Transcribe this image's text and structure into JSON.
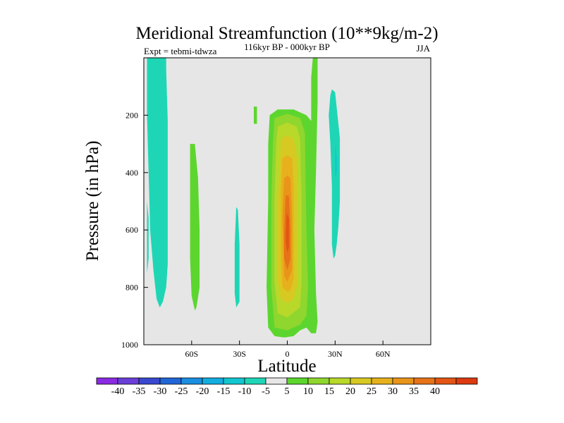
{
  "chart_data": {
    "type": "contour",
    "title": "Meridional Streamfunction (10**9kg/m-2)",
    "subtitle": "116kyr BP - 000kyr BP",
    "experiment": "Expt = tebmi-tdwza",
    "season": "JJA",
    "xlabel": "Latitude",
    "ylabel": "Pressure (in hPa)",
    "xlim": [
      -90,
      90
    ],
    "ylim": [
      1000,
      0
    ],
    "x_ticks": [
      {
        "value": -60,
        "label": "60S"
      },
      {
        "value": -30,
        "label": "30S"
      },
      {
        "value": 0,
        "label": "0"
      },
      {
        "value": 30,
        "label": "30N"
      },
      {
        "value": 60,
        "label": "60N"
      }
    ],
    "y_ticks": [
      {
        "value": 200,
        "label": "200"
      },
      {
        "value": 400,
        "label": "400"
      },
      {
        "value": 600,
        "label": "600"
      },
      {
        "value": 800,
        "label": "800"
      },
      {
        "value": 1000,
        "label": "1000"
      }
    ],
    "levels": [
      -45,
      -40,
      -35,
      -30,
      -25,
      -20,
      -15,
      -10,
      -5,
      5,
      10,
      15,
      20,
      25,
      30,
      35,
      40,
      45
    ],
    "level_labels": [
      "-40",
      "-35",
      "-30",
      "-25",
      "-20",
      "-15",
      "-10",
      "-5",
      "5",
      "10",
      "15",
      "20",
      "25",
      "30",
      "35",
      "40"
    ],
    "colors": [
      "#8a2be2",
      "#6a3fd8",
      "#3a48d0",
      "#2166d8",
      "#1a8ee0",
      "#12aee0",
      "#12c6cf",
      "#1ed6b5",
      "#e6e6e6",
      "#5cd62e",
      "#8fd62e",
      "#b8d82a",
      "#d8c822",
      "#e6b11c",
      "#e8951a",
      "#e67318",
      "#e35514",
      "#dc3a10"
    ],
    "background_color": "#e6e6e6",
    "regions": [
      {
        "name": "south-polar-negative",
        "value": -7,
        "outline": [
          [
            -88,
            0
          ],
          [
            -76,
            0
          ],
          [
            -76,
            40
          ],
          [
            -75,
            220
          ],
          [
            -75,
            720
          ],
          [
            -76,
            800
          ],
          [
            -78,
            850
          ],
          [
            -80,
            870
          ],
          [
            -82,
            840
          ],
          [
            -84,
            740
          ],
          [
            -86,
            600
          ],
          [
            -87,
            400
          ],
          [
            -88,
            200
          ]
        ]
      },
      {
        "name": "south-polar-negative-tail",
        "value": -7,
        "outline": [
          [
            -88,
            500
          ],
          [
            -87,
            560
          ],
          [
            -87,
            700
          ],
          [
            -88,
            750
          ]
        ]
      },
      {
        "name": "southern-midlat-positive",
        "value": 7,
        "outline": [
          [
            -61,
            300
          ],
          [
            -58,
            300
          ],
          [
            -56,
            420
          ],
          [
            -55,
            600
          ],
          [
            -55,
            800
          ],
          [
            -57,
            870
          ],
          [
            -58,
            880
          ],
          [
            -60,
            830
          ],
          [
            -61,
            700
          ],
          [
            -61,
            500
          ]
        ]
      },
      {
        "name": "southern-subtropic-negative",
        "value": -7,
        "outline": [
          [
            -32,
            520
          ],
          [
            -31,
            530
          ],
          [
            -30,
            650
          ],
          [
            -30,
            850
          ],
          [
            -32,
            870
          ],
          [
            -33,
            820
          ],
          [
            -33,
            650
          ]
        ]
      },
      {
        "name": "small-positive-patch",
        "value": 7,
        "outline": [
          [
            -21,
            170
          ],
          [
            -19,
            170
          ],
          [
            -19,
            230
          ],
          [
            -21,
            230
          ]
        ]
      },
      {
        "name": "north-tropic-negative",
        "value": -7,
        "outline": [
          [
            27,
            130
          ],
          [
            28,
            110
          ],
          [
            30,
            120
          ],
          [
            33,
            280
          ],
          [
            33,
            500
          ],
          [
            32,
            590
          ],
          [
            31,
            650
          ],
          [
            30,
            690
          ],
          [
            29,
            700
          ],
          [
            28,
            650
          ],
          [
            28,
            450
          ],
          [
            27,
            300
          ],
          [
            26,
            200
          ]
        ]
      },
      {
        "name": "north-tropic-negative-inner",
        "value": -12,
        "outline": [
          [
            30,
            300
          ],
          [
            31,
            350
          ],
          [
            31,
            400
          ],
          [
            30,
            420
          ],
          [
            30,
            350
          ]
        ]
      },
      {
        "name": "hadley-l1",
        "value": 7,
        "outline": [
          [
            -11,
            200
          ],
          [
            -6,
            180
          ],
          [
            4,
            180
          ],
          [
            12,
            200
          ],
          [
            15,
            220
          ],
          [
            15,
            70
          ],
          [
            16,
            0
          ],
          [
            19,
            0
          ],
          [
            19,
            150
          ],
          [
            18,
            400
          ],
          [
            17,
            600
          ],
          [
            18,
            820
          ],
          [
            19,
            920
          ],
          [
            18,
            960
          ],
          [
            15,
            960
          ],
          [
            12,
            940
          ],
          [
            8,
            950
          ],
          [
            4,
            970
          ],
          [
            -2,
            975
          ],
          [
            -8,
            970
          ],
          [
            -12,
            940
          ],
          [
            -13,
            800
          ],
          [
            -12,
            500
          ],
          [
            -12,
            300
          ]
        ]
      },
      {
        "name": "hadley-l2",
        "value": 12,
        "outline": [
          [
            -8,
            210
          ],
          [
            0,
            195
          ],
          [
            8,
            210
          ],
          [
            11,
            260
          ],
          [
            12,
            600
          ],
          [
            13,
            800
          ],
          [
            12,
            900
          ],
          [
            8,
            930
          ],
          [
            0,
            950
          ],
          [
            -8,
            940
          ],
          [
            -10,
            800
          ],
          [
            -10,
            500
          ],
          [
            -9,
            300
          ]
        ]
      },
      {
        "name": "hadley-l3",
        "value": 17,
        "outline": [
          [
            -6,
            240
          ],
          [
            0,
            225
          ],
          [
            6,
            240
          ],
          [
            8,
            280
          ],
          [
            9,
            500
          ],
          [
            9,
            780
          ],
          [
            8,
            870
          ],
          [
            0,
            905
          ],
          [
            -6,
            890
          ],
          [
            -8,
            780
          ],
          [
            -8,
            500
          ],
          [
            -7,
            300
          ]
        ]
      },
      {
        "name": "hadley-l4",
        "value": 22,
        "outline": [
          [
            -4,
            285
          ],
          [
            0,
            270
          ],
          [
            4,
            285
          ],
          [
            6,
            350
          ],
          [
            6,
            800
          ],
          [
            4,
            840
          ],
          [
            0,
            855
          ],
          [
            -4,
            840
          ],
          [
            -6,
            780
          ],
          [
            -6,
            500
          ]
        ]
      },
      {
        "name": "hadley-l5",
        "value": 27,
        "outline": [
          [
            -3,
            350
          ],
          [
            0,
            340
          ],
          [
            3,
            350
          ],
          [
            4,
            450
          ],
          [
            4,
            770
          ],
          [
            2,
            810
          ],
          [
            0,
            815
          ],
          [
            -3,
            800
          ],
          [
            -4,
            700
          ],
          [
            -4,
            450
          ]
        ]
      },
      {
        "name": "hadley-l6",
        "value": 32,
        "outline": [
          [
            -2,
            420
          ],
          [
            0,
            410
          ],
          [
            2,
            420
          ],
          [
            3,
            560
          ],
          [
            3,
            740
          ],
          [
            0,
            780
          ],
          [
            -2,
            760
          ],
          [
            -3,
            560
          ]
        ]
      },
      {
        "name": "hadley-l7",
        "value": 37,
        "outline": [
          [
            -1,
            480
          ],
          [
            1,
            480
          ],
          [
            2,
            600
          ],
          [
            2,
            700
          ],
          [
            0,
            740
          ],
          [
            -2,
            700
          ],
          [
            -2,
            600
          ]
        ]
      },
      {
        "name": "hadley-l8",
        "value": 42,
        "outline": [
          [
            -0.5,
            540
          ],
          [
            1,
            560
          ],
          [
            1,
            660
          ],
          [
            0,
            680
          ],
          [
            -1,
            640
          ]
        ]
      }
    ]
  }
}
